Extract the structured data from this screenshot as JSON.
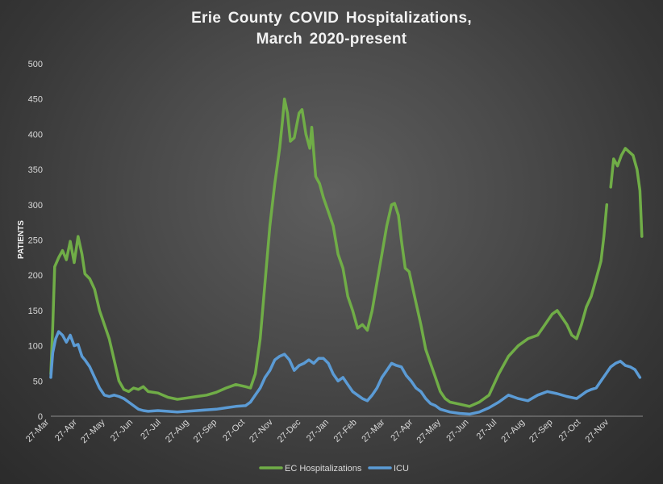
{
  "chart_data": {
    "type": "line",
    "title_line1": "Erie County  COVID Hospitalizations,",
    "title_line2": "March  2020-present",
    "ylabel": "PATIENTS",
    "ylim": [
      0,
      500
    ],
    "yticks": [
      0,
      50,
      100,
      150,
      200,
      250,
      300,
      350,
      400,
      450,
      500
    ],
    "x_tick_labels": [
      "27-Mar",
      "27-Apr",
      "27-May",
      "27-Jun",
      "27-Jul",
      "27-Aug",
      "27-Sep",
      "27-Oct",
      "27-Nov",
      "27-Dec",
      "27-Jan",
      "27-Feb",
      "27-Mar",
      "27-Apr",
      "27-May",
      "27-Jun",
      "27-Jul",
      "27-Aug",
      "27-Sep",
      "27-Oct",
      "27-Nov"
    ],
    "legend_position": "bottom",
    "gridlines": false,
    "series": [
      {
        "name": "EC Hospitalizations",
        "color": "#70ad47",
        "points": [
          [
            0,
            60
          ],
          [
            2,
            128
          ],
          [
            4,
            212
          ],
          [
            8,
            225
          ],
          [
            12,
            235
          ],
          [
            16,
            222
          ],
          [
            20,
            248
          ],
          [
            24,
            218
          ],
          [
            28,
            255
          ],
          [
            32,
            230
          ],
          [
            35,
            202
          ],
          [
            40,
            195
          ],
          [
            45,
            180
          ],
          [
            50,
            150
          ],
          [
            55,
            130
          ],
          [
            60,
            110
          ],
          [
            65,
            80
          ],
          [
            70,
            50
          ],
          [
            75,
            38
          ],
          [
            80,
            35
          ],
          [
            85,
            40
          ],
          [
            90,
            38
          ],
          [
            95,
            42
          ],
          [
            100,
            35
          ],
          [
            110,
            33
          ],
          [
            120,
            27
          ],
          [
            130,
            24
          ],
          [
            140,
            26
          ],
          [
            150,
            28
          ],
          [
            160,
            30
          ],
          [
            170,
            34
          ],
          [
            180,
            40
          ],
          [
            190,
            45
          ],
          [
            200,
            42
          ],
          [
            205,
            40
          ],
          [
            210,
            60
          ],
          [
            215,
            110
          ],
          [
            220,
            190
          ],
          [
            225,
            270
          ],
          [
            230,
            330
          ],
          [
            235,
            380
          ],
          [
            238,
            420
          ],
          [
            240,
            450
          ],
          [
            243,
            430
          ],
          [
            246,
            390
          ],
          [
            250,
            395
          ],
          [
            255,
            430
          ],
          [
            258,
            435
          ],
          [
            262,
            400
          ],
          [
            266,
            380
          ],
          [
            268,
            410
          ],
          [
            272,
            340
          ],
          [
            276,
            330
          ],
          [
            280,
            310
          ],
          [
            285,
            290
          ],
          [
            290,
            270
          ],
          [
            295,
            230
          ],
          [
            300,
            210
          ],
          [
            305,
            170
          ],
          [
            310,
            150
          ],
          [
            315,
            125
          ],
          [
            320,
            130
          ],
          [
            325,
            122
          ],
          [
            330,
            150
          ],
          [
            335,
            190
          ],
          [
            340,
            230
          ],
          [
            345,
            270
          ],
          [
            350,
            300
          ],
          [
            353,
            302
          ],
          [
            357,
            285
          ],
          [
            360,
            250
          ],
          [
            364,
            210
          ],
          [
            368,
            205
          ],
          [
            372,
            180
          ],
          [
            376,
            155
          ],
          [
            380,
            130
          ],
          [
            385,
            95
          ],
          [
            390,
            75
          ],
          [
            395,
            55
          ],
          [
            400,
            35
          ],
          [
            405,
            25
          ],
          [
            410,
            20
          ],
          [
            420,
            17
          ],
          [
            430,
            14
          ],
          [
            440,
            20
          ],
          [
            450,
            30
          ],
          [
            460,
            60
          ],
          [
            470,
            85
          ],
          [
            480,
            100
          ],
          [
            490,
            110
          ],
          [
            500,
            115
          ],
          [
            505,
            125
          ],
          [
            510,
            135
          ],
          [
            515,
            145
          ],
          [
            520,
            150
          ],
          [
            525,
            140
          ],
          [
            530,
            130
          ],
          [
            535,
            115
          ],
          [
            540,
            110
          ],
          [
            545,
            130
          ],
          [
            550,
            155
          ],
          [
            555,
            170
          ],
          [
            560,
            195
          ],
          [
            565,
            220
          ],
          [
            568,
            255
          ],
          [
            571,
            300
          ],
          null,
          [
            575,
            325
          ],
          [
            578,
            365
          ],
          [
            582,
            355
          ],
          [
            586,
            370
          ],
          [
            590,
            380
          ],
          [
            594,
            375
          ],
          [
            598,
            370
          ],
          [
            602,
            350
          ],
          [
            605,
            320
          ],
          [
            607,
            255
          ]
        ]
      },
      {
        "name": "ICU",
        "color": "#5b9bd5",
        "points": [
          [
            0,
            55
          ],
          [
            2,
            90
          ],
          [
            5,
            110
          ],
          [
            8,
            120
          ],
          [
            12,
            115
          ],
          [
            16,
            105
          ],
          [
            20,
            115
          ],
          [
            24,
            100
          ],
          [
            28,
            102
          ],
          [
            32,
            85
          ],
          [
            35,
            80
          ],
          [
            40,
            70
          ],
          [
            45,
            55
          ],
          [
            50,
            40
          ],
          [
            55,
            30
          ],
          [
            60,
            28
          ],
          [
            65,
            30
          ],
          [
            70,
            28
          ],
          [
            75,
            25
          ],
          [
            80,
            20
          ],
          [
            85,
            15
          ],
          [
            90,
            10
          ],
          [
            95,
            8
          ],
          [
            100,
            7
          ],
          [
            110,
            8
          ],
          [
            120,
            7
          ],
          [
            130,
            6
          ],
          [
            140,
            7
          ],
          [
            150,
            8
          ],
          [
            160,
            9
          ],
          [
            170,
            10
          ],
          [
            180,
            12
          ],
          [
            190,
            14
          ],
          [
            200,
            15
          ],
          [
            205,
            20
          ],
          [
            210,
            30
          ],
          [
            215,
            40
          ],
          [
            220,
            55
          ],
          [
            225,
            65
          ],
          [
            230,
            80
          ],
          [
            235,
            85
          ],
          [
            240,
            88
          ],
          [
            245,
            80
          ],
          [
            250,
            65
          ],
          [
            255,
            72
          ],
          [
            260,
            75
          ],
          [
            265,
            80
          ],
          [
            270,
            75
          ],
          [
            275,
            82
          ],
          [
            280,
            82
          ],
          [
            285,
            75
          ],
          [
            290,
            60
          ],
          [
            295,
            50
          ],
          [
            300,
            55
          ],
          [
            305,
            45
          ],
          [
            310,
            35
          ],
          [
            315,
            30
          ],
          [
            320,
            25
          ],
          [
            325,
            22
          ],
          [
            330,
            30
          ],
          [
            335,
            40
          ],
          [
            340,
            55
          ],
          [
            345,
            65
          ],
          [
            350,
            75
          ],
          [
            355,
            72
          ],
          [
            360,
            70
          ],
          [
            365,
            58
          ],
          [
            370,
            50
          ],
          [
            375,
            40
          ],
          [
            380,
            35
          ],
          [
            385,
            25
          ],
          [
            390,
            18
          ],
          [
            395,
            15
          ],
          [
            400,
            10
          ],
          [
            410,
            6
          ],
          [
            420,
            4
          ],
          [
            430,
            3
          ],
          [
            440,
            6
          ],
          [
            450,
            12
          ],
          [
            460,
            20
          ],
          [
            470,
            30
          ],
          [
            480,
            25
          ],
          [
            490,
            22
          ],
          [
            500,
            30
          ],
          [
            510,
            35
          ],
          [
            520,
            32
          ],
          [
            530,
            28
          ],
          [
            540,
            25
          ],
          [
            545,
            30
          ],
          [
            550,
            35
          ],
          [
            555,
            38
          ],
          [
            560,
            40
          ],
          [
            565,
            50
          ],
          [
            570,
            60
          ],
          [
            575,
            70
          ],
          [
            580,
            75
          ],
          [
            585,
            78
          ],
          [
            590,
            72
          ],
          [
            595,
            70
          ],
          [
            600,
            66
          ],
          [
            605,
            55
          ]
        ]
      }
    ]
  }
}
